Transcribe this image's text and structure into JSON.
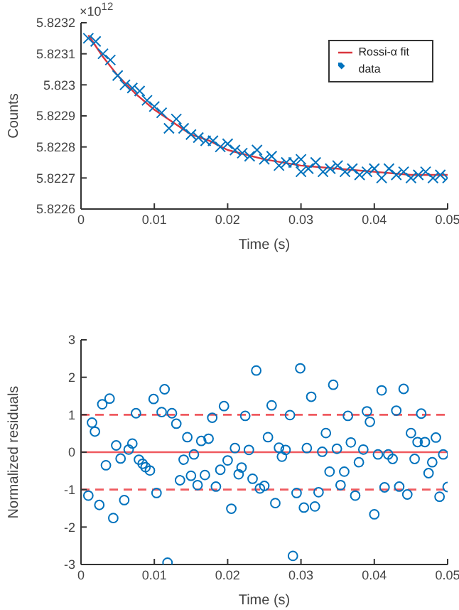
{
  "chart_data": [
    {
      "type": "scatter",
      "xlabel": "Time (s)",
      "ylabel": "Counts",
      "annotations": [
        "×10$^{12}$"
      ],
      "xlim": [
        0,
        0.05
      ],
      "xticks": [
        0,
        0.01,
        0.02,
        0.03,
        0.04,
        0.05
      ],
      "ylim": [
        5.8226,
        5.8232
      ],
      "yticks": [
        5.8226,
        5.8227,
        5.8228,
        5.8229,
        5.823,
        5.8231,
        5.8232
      ],
      "legend": "top right",
      "series": [
        {
          "name": "data",
          "marker": "cross",
          "color": "#0072bd",
          "x": [
            0.001,
            0.002,
            0.003,
            0.004,
            0.005,
            0.006,
            0.007,
            0.008,
            0.009,
            0.01,
            0.011,
            0.012,
            0.013,
            0.014,
            0.015,
            0.016,
            0.017,
            0.018,
            0.019,
            0.02,
            0.021,
            0.022,
            0.023,
            0.024,
            0.025,
            0.026,
            0.027,
            0.028,
            0.029,
            0.03,
            0.03,
            0.031,
            0.032,
            0.033,
            0.034,
            0.035,
            0.036,
            0.037,
            0.038,
            0.039,
            0.04,
            0.041,
            0.042,
            0.043,
            0.044,
            0.045,
            0.046,
            0.047,
            0.048,
            0.049,
            0.05
          ],
          "values": [
            5.82315,
            5.82314,
            5.8231,
            5.82308,
            5.82303,
            5.823,
            5.82299,
            5.82298,
            5.82295,
            5.82293,
            5.82291,
            5.82286,
            5.82289,
            5.82286,
            5.82284,
            5.82283,
            5.82282,
            5.82282,
            5.8228,
            5.82281,
            5.82279,
            5.82278,
            5.82277,
            5.82279,
            5.82276,
            5.82277,
            5.82274,
            5.82275,
            5.82275,
            5.82272,
            5.82276,
            5.82273,
            5.82275,
            5.82272,
            5.82273,
            5.82274,
            5.82272,
            5.82273,
            5.82271,
            5.82272,
            5.82273,
            5.8227,
            5.82273,
            5.82271,
            5.82272,
            5.8227,
            5.82271,
            5.82272,
            5.8227,
            5.82271,
            5.8227
          ]
        },
        {
          "name": "Rossi-α fit",
          "type": "line",
          "marker": "none",
          "line_style": "solid",
          "color": "#d9363e",
          "x": [
            0.001,
            0.003,
            0.005,
            0.0075,
            0.01,
            0.0125,
            0.015,
            0.0175,
            0.02,
            0.025,
            0.03,
            0.035,
            0.04,
            0.045,
            0.05
          ],
          "values": [
            5.82316,
            5.82309,
            5.82303,
            5.82297,
            5.82292,
            5.82288,
            5.82284,
            5.82282,
            5.82279,
            5.82276,
            5.82274,
            5.82273,
            5.82272,
            5.82271,
            5.82271
          ]
        }
      ]
    },
    {
      "type": "scatter",
      "xlabel": "Time (s)",
      "ylabel": "Normalized residuals",
      "xlim": [
        0,
        0.05
      ],
      "xticks": [
        0,
        0.01,
        0.02,
        0.03,
        0.04,
        0.05
      ],
      "ylim": [
        -3,
        3
      ],
      "yticks": [
        -3,
        -2,
        -1,
        0,
        1,
        2,
        3
      ],
      "marker": "circle",
      "ref_lines": [
        {
          "axis": "y",
          "value": 0,
          "color": "#ef5a5f",
          "line_style": "solid"
        },
        {
          "axis": "y",
          "value": 1,
          "color": "#ef5a5f",
          "line_style": "dashed"
        },
        {
          "axis": "y",
          "value": -1,
          "color": "#ef5a5f",
          "line_style": "dashed"
        }
      ],
      "series": [
        {
          "color": "#0072bd",
          "x": [
            0.001,
            0.0015,
            0.0019,
            0.0025,
            0.0029,
            0.0034,
            0.0039,
            0.0044,
            0.0048,
            0.0054,
            0.0059,
            0.0065,
            0.007,
            0.0075,
            0.0079,
            0.0084,
            0.0088,
            0.0094,
            0.0099,
            0.0103,
            0.011,
            0.0114,
            0.0118,
            0.0124,
            0.013,
            0.0135,
            0.014,
            0.0145,
            0.015,
            0.0154,
            0.0159,
            0.0164,
            0.0169,
            0.0174,
            0.0179,
            0.0184,
            0.019,
            0.0195,
            0.02,
            0.0205,
            0.021,
            0.0215,
            0.0219,
            0.0224,
            0.0229,
            0.0234,
            0.0239,
            0.0244,
            0.025,
            0.0255,
            0.026,
            0.0265,
            0.027,
            0.0274,
            0.0279,
            0.0285,
            0.0289,
            0.0294,
            0.0299,
            0.0304,
            0.0308,
            0.0314,
            0.0319,
            0.0324,
            0.0329,
            0.0334,
            0.0339,
            0.0344,
            0.0349,
            0.0354,
            0.0359,
            0.0364,
            0.0368,
            0.0374,
            0.0379,
            0.0385,
            0.039,
            0.0394,
            0.04,
            0.0405,
            0.041,
            0.0414,
            0.0419,
            0.0425,
            0.043,
            0.0434,
            0.044,
            0.0445,
            0.045,
            0.0455,
            0.0459,
            0.0464,
            0.0469,
            0.0474,
            0.0479,
            0.0484,
            0.0489,
            0.0494,
            0.05
          ],
          "values": [
            -1.16,
            0.79,
            0.55,
            -1.41,
            1.28,
            -0.35,
            1.43,
            -1.76,
            0.18,
            -0.17,
            -1.28,
            0.07,
            0.23,
            1.04,
            -0.2,
            -0.31,
            -0.4,
            -0.49,
            1.42,
            -1.09,
            1.07,
            1.68,
            -2.95,
            1.04,
            0.76,
            -0.75,
            -0.2,
            0.4,
            -0.63,
            -0.06,
            -0.88,
            0.3,
            -0.61,
            0.36,
            0.92,
            -0.92,
            -0.47,
            1.23,
            -0.22,
            -1.51,
            0.11,
            -0.59,
            -0.41,
            0.97,
            0.06,
            -0.71,
            2.18,
            -0.97,
            -0.9,
            0.4,
            1.25,
            -1.36,
            0.12,
            -0.12,
            0.06,
            0.99,
            -2.77,
            -1.09,
            2.24,
            -1.48,
            0.11,
            1.48,
            -1.45,
            -1.07,
            0.01,
            0.51,
            -0.52,
            1.8,
            0.09,
            -0.88,
            -0.52,
            0.97,
            0.26,
            -1.16,
            -0.27,
            0.07,
            1.09,
            0.81,
            -1.66,
            -0.06,
            1.65,
            -0.94,
            -0.06,
            -0.18,
            1.11,
            -0.92,
            1.69,
            -1.13,
            0.51,
            -0.18,
            0.27,
            1.03,
            0.27,
            -0.56,
            -0.27,
            0.39,
            -1.19,
            -0.06,
            -0.93
          ]
        }
      ]
    }
  ]
}
